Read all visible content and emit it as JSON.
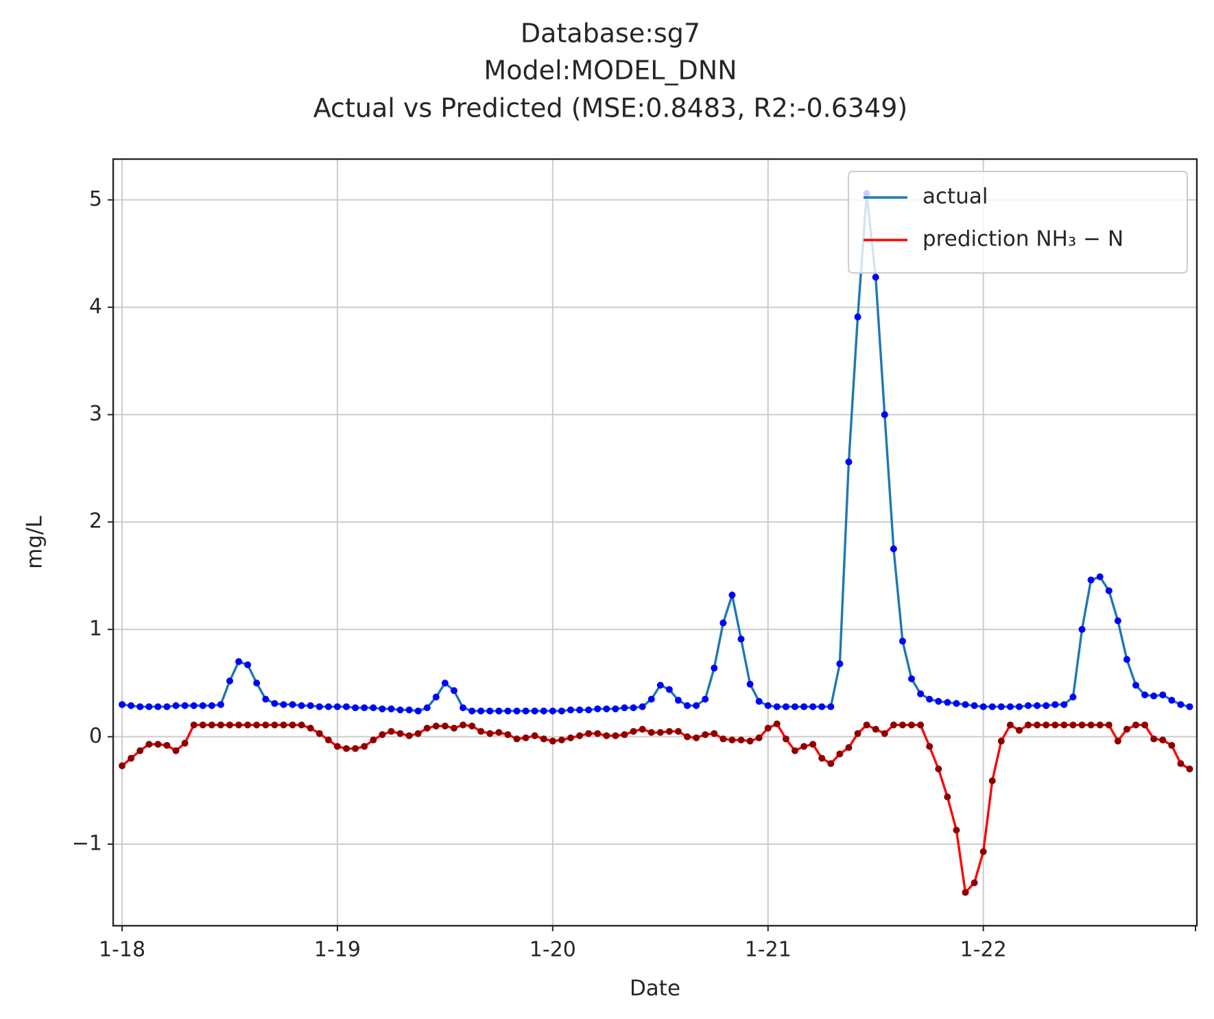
{
  "chart_data": {
    "type": "line",
    "title": [
      "Database:sg7",
      "Model:MODEL_DNN",
      "Actual vs Predicted (MSE:0.8483, R2:-0.6349)"
    ],
    "x_label": "Date",
    "y_label": "mg/L",
    "categories": [
      "1-18",
      null,
      null,
      null,
      null,
      null,
      null,
      null,
      null,
      null,
      null,
      null,
      null,
      null,
      null,
      null,
      null,
      null,
      null,
      null,
      null,
      null,
      null,
      null,
      "1-19",
      null,
      null,
      null,
      null,
      null,
      null,
      null,
      null,
      null,
      null,
      null,
      null,
      null,
      null,
      null,
      null,
      null,
      null,
      null,
      null,
      null,
      null,
      null,
      "1-20",
      null,
      null,
      null,
      null,
      null,
      null,
      null,
      null,
      null,
      null,
      null,
      null,
      null,
      null,
      null,
      null,
      null,
      null,
      null,
      null,
      null,
      null,
      null,
      "1-21",
      null,
      null,
      null,
      null,
      null,
      null,
      null,
      null,
      null,
      null,
      null,
      null,
      null,
      null,
      null,
      null,
      null,
      null,
      null,
      null,
      null,
      null,
      null,
      "1-22",
      null,
      null,
      null,
      null,
      null,
      null,
      null,
      null,
      null,
      null,
      null,
      null,
      null,
      null,
      null,
      null,
      null,
      null,
      null,
      null,
      null,
      null,
      null
    ],
    "series": [
      {
        "name": "actual",
        "color": "#1f77b4",
        "marker_color": "#0000ff",
        "values": [
          0.3,
          0.29,
          0.28,
          0.28,
          0.28,
          0.28,
          0.29,
          0.29,
          0.29,
          0.29,
          0.29,
          0.3,
          0.52,
          0.7,
          0.67,
          0.5,
          0.35,
          0.31,
          0.3,
          0.3,
          0.29,
          0.29,
          0.28,
          0.28,
          0.28,
          0.28,
          0.27,
          0.27,
          0.27,
          0.26,
          0.26,
          0.25,
          0.25,
          0.24,
          0.27,
          0.37,
          0.5,
          0.43,
          0.27,
          0.24,
          0.24,
          0.24,
          0.24,
          0.24,
          0.24,
          0.24,
          0.24,
          0.24,
          0.24,
          0.24,
          0.25,
          0.25,
          0.25,
          0.26,
          0.26,
          0.26,
          0.27,
          0.27,
          0.28,
          0.35,
          0.48,
          0.44,
          0.34,
          0.29,
          0.29,
          0.35,
          0.64,
          1.06,
          1.32,
          0.91,
          0.49,
          0.33,
          0.29,
          0.28,
          0.28,
          0.28,
          0.28,
          0.28,
          0.28,
          0.28,
          0.68,
          2.56,
          3.91,
          5.06,
          4.28,
          3.0,
          1.75,
          0.89,
          0.54,
          0.4,
          0.35,
          0.33,
          0.32,
          0.31,
          0.3,
          0.29,
          0.28,
          0.28,
          0.28,
          0.28,
          0.28,
          0.29,
          0.29,
          0.29,
          0.3,
          0.3,
          0.37,
          1.0,
          1.46,
          1.49,
          1.36,
          1.08,
          0.72,
          0.48,
          0.39,
          0.38,
          0.39,
          0.34,
          0.3,
          0.28
        ]
      },
      {
        "name": "prediction NH₃ − N",
        "color": "#ff0000",
        "marker_color": "#8b0000",
        "values": [
          -0.27,
          -0.2,
          -0.13,
          -0.07,
          -0.07,
          -0.08,
          -0.13,
          -0.06,
          0.11,
          0.11,
          0.11,
          0.11,
          0.11,
          0.11,
          0.11,
          0.11,
          0.11,
          0.11,
          0.11,
          0.11,
          0.11,
          0.08,
          0.03,
          -0.03,
          -0.09,
          -0.11,
          -0.11,
          -0.09,
          -0.03,
          0.02,
          0.05,
          0.03,
          0.01,
          0.03,
          0.08,
          0.1,
          0.1,
          0.08,
          0.11,
          0.1,
          0.05,
          0.03,
          0.04,
          0.02,
          -0.02,
          -0.01,
          0.01,
          -0.02,
          -0.04,
          -0.03,
          -0.01,
          0.01,
          0.03,
          0.03,
          0.01,
          0.01,
          0.02,
          0.05,
          0.07,
          0.04,
          0.04,
          0.05,
          0.05,
          0.0,
          -0.01,
          0.02,
          0.03,
          -0.02,
          -0.03,
          -0.03,
          -0.04,
          -0.01,
          0.08,
          0.12,
          -0.02,
          -0.13,
          -0.09,
          -0.07,
          -0.2,
          -0.25,
          -0.16,
          -0.1,
          0.03,
          0.11,
          0.07,
          0.03,
          0.11,
          0.11,
          0.11,
          0.11,
          -0.09,
          -0.3,
          -0.56,
          -0.87,
          -1.45,
          -1.36,
          -1.07,
          -0.41,
          -0.04,
          0.11,
          0.06,
          0.11,
          0.11,
          0.11,
          0.11,
          0.11,
          0.11,
          0.11,
          0.11,
          0.11,
          0.11,
          -0.04,
          0.07,
          0.11,
          0.11,
          -0.02,
          -0.03,
          -0.08,
          -0.25,
          -0.3
        ]
      }
    ],
    "ylim": [
      -1.76,
      5.38
    ],
    "yticks": [
      {
        "value": -1,
        "label": "−1"
      },
      0,
      1,
      2,
      3,
      4,
      5
    ],
    "grid": true,
    "legend": "upper right"
  }
}
